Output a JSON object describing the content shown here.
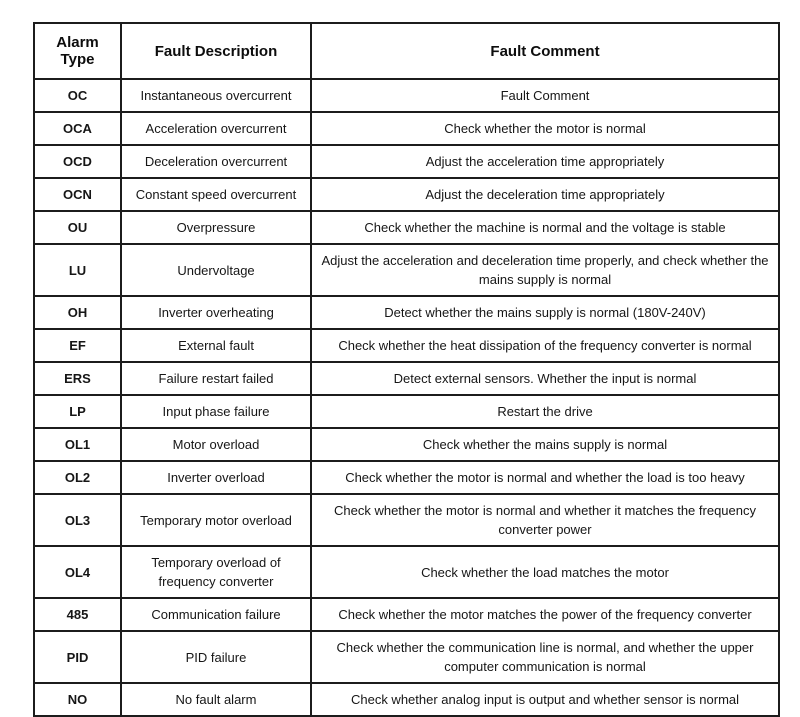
{
  "table": {
    "headers": [
      "Alarm Type",
      "Fault Description",
      "Fault Comment"
    ],
    "rows": [
      {
        "type": "OC",
        "description": "Instantaneous overcurrent",
        "comment": "Fault Comment"
      },
      {
        "type": "OCA",
        "description": "Acceleration overcurrent",
        "comment": "Check whether the motor is normal"
      },
      {
        "type": "OCD",
        "description": "Deceleration overcurrent",
        "comment": "Adjust the acceleration time appropriately"
      },
      {
        "type": "OCN",
        "description": "Constant speed overcurrent",
        "comment": "Adjust the deceleration time appropriately"
      },
      {
        "type": "OU",
        "description": "Overpressure",
        "comment": "Check whether the machine is normal and the voltage is stable"
      },
      {
        "type": "LU",
        "description": "Undervoltage",
        "comment": "Adjust the acceleration and deceleration time properly, and check whether the mains supply is normal"
      },
      {
        "type": "OH",
        "description": "Inverter overheating",
        "comment": "Detect whether the mains supply is normal (180V-240V)"
      },
      {
        "type": "EF",
        "description": "External fault",
        "comment": "Check whether the heat dissipation of the frequency converter is normal"
      },
      {
        "type": "ERS",
        "description": "Failure restart failed",
        "comment": "Detect external sensors. Whether the input is normal"
      },
      {
        "type": "LP",
        "description": "Input phase failure",
        "comment": "Restart the drive"
      },
      {
        "type": "OL1",
        "description": "Motor overload",
        "comment": "Check whether the mains supply is normal"
      },
      {
        "type": "OL2",
        "description": "Inverter overload",
        "comment": "Check whether the motor is normal and whether the load is too heavy"
      },
      {
        "type": "OL3",
        "description": "Temporary motor overload",
        "comment": "Check whether the motor is normal and whether it matches the frequency converter power"
      },
      {
        "type": "OL4",
        "description": "Temporary overload of frequency converter",
        "comment": "Check whether the load matches the motor"
      },
      {
        "type": "485",
        "description": "Communication failure",
        "comment": "Check whether the motor matches the power of the frequency converter"
      },
      {
        "type": "PID",
        "description": "PID failure",
        "comment": "Check whether the communication line is normal, and whether the upper computer communication is normal"
      },
      {
        "type": "NO",
        "description": "No fault alarm",
        "comment": "Check whether analog input is output and whether sensor is normal"
      }
    ]
  },
  "colors": {
    "background": "#ffffff",
    "border": "#1c1c1c",
    "text": "#161616"
  }
}
